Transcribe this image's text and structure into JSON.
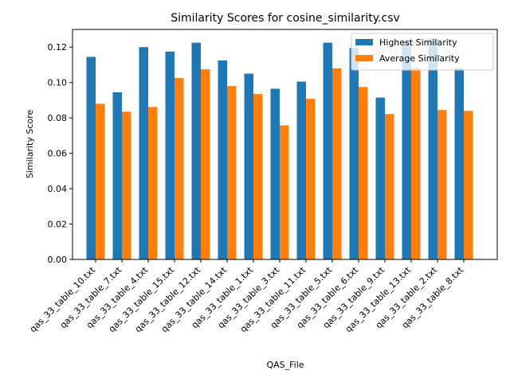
{
  "chart_data": {
    "type": "bar",
    "title": "Similarity Scores for cosine_similarity.csv",
    "xlabel": "QAS_File",
    "ylabel": "Similarity Score",
    "ylim": [
      0,
      0.13
    ],
    "yticks": [
      0.0,
      0.02,
      0.04,
      0.06,
      0.08,
      0.1,
      0.12
    ],
    "ytick_labels": [
      "0.00",
      "0.02",
      "0.04",
      "0.06",
      "0.08",
      "0.10",
      "0.12"
    ],
    "grid": false,
    "legend_position": "top-right",
    "categories": [
      "qas_33_table_10.txt",
      "qas_33_table_7.txt",
      "qas_33_table_4.txt",
      "qas_33_table_15.txt",
      "qas_33_table_12.txt",
      "qas_33_table_14.txt",
      "qas_33_table_1.txt",
      "qas_33_table_3.txt",
      "qas_33_table_11.txt",
      "qas_33_table_5.txt",
      "qas_33_table_6.txt",
      "qas_33_table_9.txt",
      "qas_33_table_13.txt",
      "qas_33_table_2.txt",
      "qas_33_table_8.txt"
    ],
    "series": [
      {
        "name": "Highest Similarity",
        "color": "#1f77b4",
        "values": [
          0.1145,
          0.0945,
          0.12,
          0.1175,
          0.1225,
          0.1125,
          0.105,
          0.0965,
          0.1005,
          0.1225,
          0.1195,
          0.0915,
          0.1235,
          0.125,
          0.108
        ]
      },
      {
        "name": "Average Similarity",
        "color": "#ff7f0e",
        "values": [
          0.088,
          0.0835,
          0.0862,
          0.1025,
          0.1075,
          0.098,
          0.0935,
          0.0758,
          0.0908,
          0.108,
          0.0975,
          0.0822,
          0.1085,
          0.0845,
          0.084
        ]
      }
    ]
  }
}
